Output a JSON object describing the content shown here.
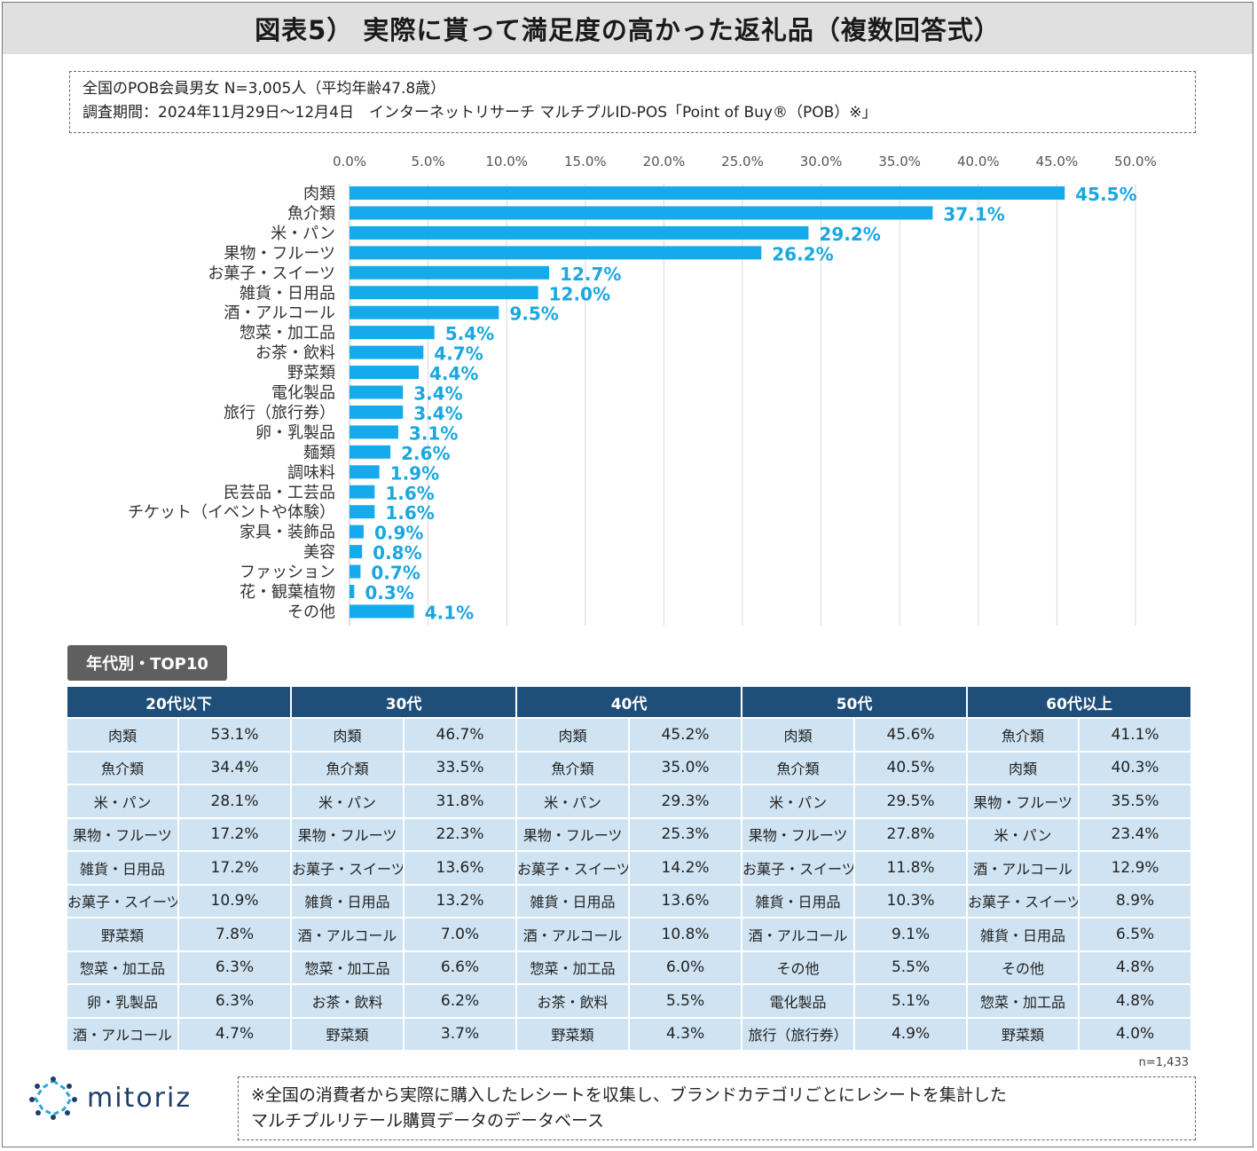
{
  "title": "図表5） 実際に貰って満足度の高かった返礼品（複数回答式）",
  "survey": {
    "line1": "全国のPOB会員男女 N=3,005人（平均年齢47.8歳）",
    "line2": "調査期間：2024年11月29日～12月4日　インターネットリサーチ マルチプルID-POS「Point of Buy®（POB）※」"
  },
  "colors": {
    "bar": "#14aaeb",
    "label": "#1aa7e0",
    "header": "#1f4e79",
    "cell": "#cfe3f2"
  },
  "chart_data": {
    "type": "bar",
    "orientation": "horizontal",
    "categories": [
      "肉類",
      "魚介類",
      "米・パン",
      "果物・フルーツ",
      "お菓子・スイーツ",
      "雑貨・日用品",
      "酒・アルコール",
      "惣菜・加工品",
      "お茶・飲料",
      "野菜類",
      "電化製品",
      "旅行（旅行券）",
      "卵・乳製品",
      "麺類",
      "調味料",
      "民芸品・工芸品",
      "チケット（イベントや体験）",
      "家具・装飾品",
      "美容",
      "ファッション",
      "花・観葉植物",
      "その他"
    ],
    "values": [
      45.5,
      37.1,
      29.2,
      26.2,
      12.7,
      12.0,
      9.5,
      5.4,
      4.7,
      4.4,
      3.4,
      3.4,
      3.1,
      2.6,
      1.9,
      1.6,
      1.6,
      0.9,
      0.8,
      0.7,
      0.3,
      4.1
    ],
    "value_labels": [
      "45.5%",
      "37.1%",
      "29.2%",
      "26.2%",
      "12.7%",
      "12.0%",
      "9.5%",
      "5.4%",
      "4.7%",
      "4.4%",
      "3.4%",
      "3.4%",
      "3.1%",
      "2.6%",
      "1.9%",
      "1.6%",
      "1.6%",
      "0.9%",
      "0.8%",
      "0.7%",
      "0.3%",
      "4.1%"
    ],
    "xlim": [
      0,
      50
    ],
    "x_ticks": [
      "0.0%",
      "5.0%",
      "10.0%",
      "15.0%",
      "20.0%",
      "25.0%",
      "30.0%",
      "35.0%",
      "40.0%",
      "45.0%",
      "50.0%"
    ],
    "grid": true,
    "axis_position": "top"
  },
  "age_table": {
    "tag": "年代別・TOP10",
    "groups": [
      {
        "header": "20代以下",
        "rows": [
          [
            "肉類",
            "53.1%"
          ],
          [
            "魚介類",
            "34.4%"
          ],
          [
            "米・パン",
            "28.1%"
          ],
          [
            "果物・フルーツ",
            "17.2%"
          ],
          [
            "雑貨・日用品",
            "17.2%"
          ],
          [
            "お菓子・スイーツ",
            "10.9%"
          ],
          [
            "野菜類",
            "7.8%"
          ],
          [
            "惣菜・加工品",
            "6.3%"
          ],
          [
            "卵・乳製品",
            "6.3%"
          ],
          [
            "酒・アルコール",
            "4.7%"
          ]
        ]
      },
      {
        "header": "30代",
        "rows": [
          [
            "肉類",
            "46.7%"
          ],
          [
            "魚介類",
            "33.5%"
          ],
          [
            "米・パン",
            "31.8%"
          ],
          [
            "果物・フルーツ",
            "22.3%"
          ],
          [
            "お菓子・スイーツ",
            "13.6%"
          ],
          [
            "雑貨・日用品",
            "13.2%"
          ],
          [
            "酒・アルコール",
            "7.0%"
          ],
          [
            "惣菜・加工品",
            "6.6%"
          ],
          [
            "お茶・飲料",
            "6.2%"
          ],
          [
            "野菜類",
            "3.7%"
          ]
        ]
      },
      {
        "header": "40代",
        "rows": [
          [
            "肉類",
            "45.2%"
          ],
          [
            "魚介類",
            "35.0%"
          ],
          [
            "米・パン",
            "29.3%"
          ],
          [
            "果物・フルーツ",
            "25.3%"
          ],
          [
            "お菓子・スイーツ",
            "14.2%"
          ],
          [
            "雑貨・日用品",
            "13.6%"
          ],
          [
            "酒・アルコール",
            "10.8%"
          ],
          [
            "惣菜・加工品",
            "6.0%"
          ],
          [
            "お茶・飲料",
            "5.5%"
          ],
          [
            "野菜類",
            "4.3%"
          ]
        ]
      },
      {
        "header": "50代",
        "rows": [
          [
            "肉類",
            "45.6%"
          ],
          [
            "魚介類",
            "40.5%"
          ],
          [
            "米・パン",
            "29.5%"
          ],
          [
            "果物・フルーツ",
            "27.8%"
          ],
          [
            "お菓子・スイーツ",
            "11.8%"
          ],
          [
            "雑貨・日用品",
            "10.3%"
          ],
          [
            "酒・アルコール",
            "9.1%"
          ],
          [
            "その他",
            "5.5%"
          ],
          [
            "電化製品",
            "5.1%"
          ],
          [
            "旅行（旅行券）",
            "4.9%"
          ]
        ]
      },
      {
        "header": "60代以上",
        "rows": [
          [
            "魚介類",
            "41.1%"
          ],
          [
            "肉類",
            "40.3%"
          ],
          [
            "果物・フルーツ",
            "35.5%"
          ],
          [
            "米・パン",
            "23.4%"
          ],
          [
            "酒・アルコール",
            "12.9%"
          ],
          [
            "お菓子・スイーツ",
            "8.9%"
          ],
          [
            "雑貨・日用品",
            "6.5%"
          ],
          [
            "その他",
            "4.8%"
          ],
          [
            "惣菜・加工品",
            "4.8%"
          ],
          [
            "野菜類",
            "4.0%"
          ]
        ]
      }
    ],
    "n_note": "n=1,433"
  },
  "logo": {
    "text": "mitoriz"
  },
  "footnote": {
    "line1": "※全国の消費者から実際に購入したレシートを収集し、ブランドカテゴリごとにレシートを集計した",
    "line2": "マルチプルリテール購買データのデータベース"
  }
}
